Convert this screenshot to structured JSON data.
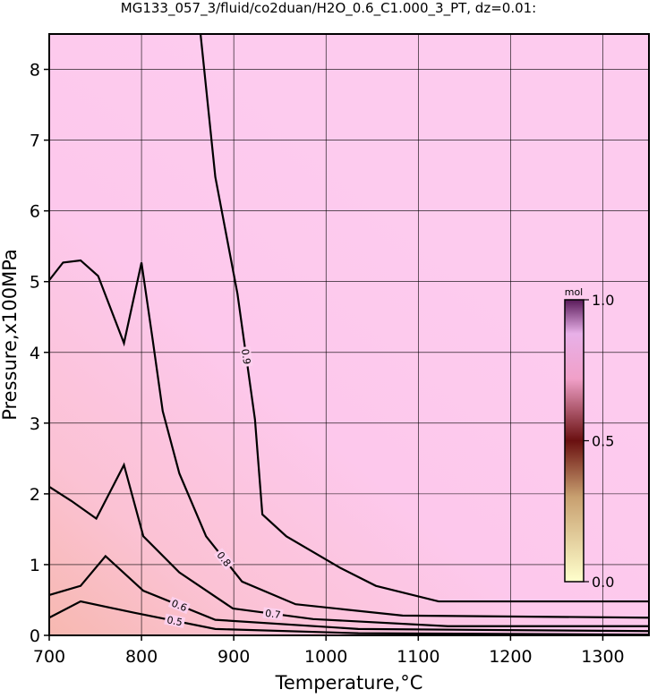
{
  "chart_data": {
    "type": "contour",
    "title": "MG133_057_3/fluid/co2duan/H2O_0.6_C1.000_3_PT, dz=0.01:",
    "x_label": "Temperature,°C",
    "y_label": "Pressure,x100MPa",
    "xlim": [
      700,
      1350
    ],
    "ylim": [
      0,
      8.5
    ],
    "xticks": [
      700,
      800,
      900,
      1000,
      1100,
      1200,
      1300
    ],
    "yticks": [
      0,
      1,
      2,
      3,
      4,
      5,
      6,
      7,
      8
    ],
    "grid": true,
    "contours": [
      {
        "level": 0.9,
        "x": [
          864,
          880,
          904,
          923,
          931,
          957,
          1016,
          1054,
          1122,
          1350
        ],
        "y": [
          8.5,
          6.48,
          4.83,
          3.05,
          1.71,
          1.4,
          0.95,
          0.7,
          0.48,
          0.48
        ]
      },
      {
        "level": 0.8,
        "x": [
          700,
          715,
          734,
          753,
          781,
          800,
          812,
          823,
          841,
          870,
          909,
          967,
          1083,
          1350
        ],
        "y": [
          5.02,
          5.27,
          5.3,
          5.08,
          4.13,
          5.27,
          4.19,
          3.17,
          2.29,
          1.4,
          0.76,
          0.44,
          0.28,
          0.25
        ]
      },
      {
        "level": 0.7,
        "x": [
          700,
          724,
          751,
          781,
          802,
          841,
          899,
          986,
          1132,
          1350
        ],
        "y": [
          2.1,
          1.9,
          1.65,
          2.41,
          1.4,
          0.89,
          0.38,
          0.23,
          0.13,
          0.13
        ]
      },
      {
        "level": 0.6,
        "x": [
          700,
          734,
          761,
          802,
          880,
          1035,
          1350
        ],
        "y": [
          0.57,
          0.7,
          1.12,
          0.63,
          0.22,
          0.09,
          0.06
        ]
      },
      {
        "level": 0.5,
        "x": [
          700,
          734,
          792,
          880,
          1035,
          1350
        ],
        "y": [
          0.25,
          0.48,
          0.32,
          0.09,
          0.03,
          0.01
        ]
      }
    ],
    "colorbar": {
      "label": "mol",
      "lim": [
        0,
        1
      ],
      "ticks": [
        {
          "value": 0,
          "label": "0.0"
        },
        0.5,
        {
          "value": 1,
          "label": "1.0"
        }
      ]
    }
  }
}
